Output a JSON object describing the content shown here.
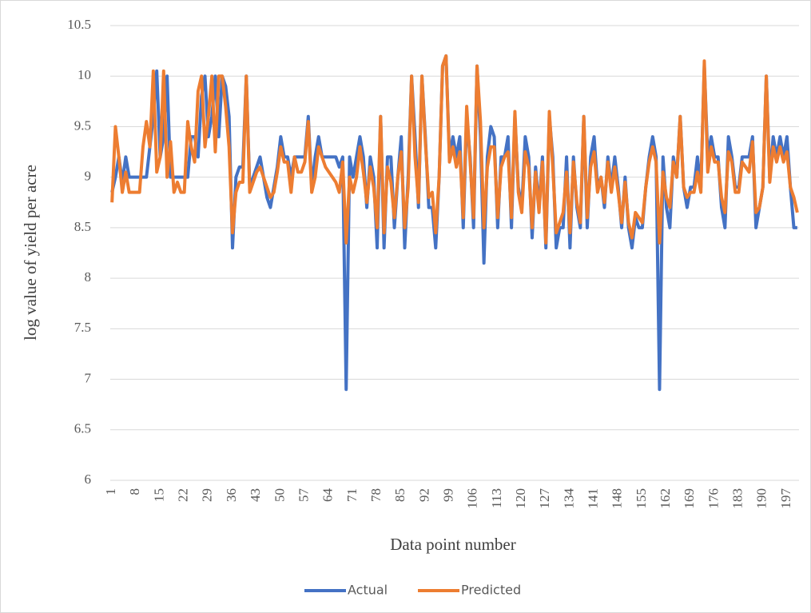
{
  "chart_data": {
    "type": "line",
    "x_label": "Data point number",
    "y_label": "log value of yield per acre",
    "x": [
      1,
      2,
      3,
      4,
      5,
      6,
      7,
      8,
      9,
      10,
      11,
      12,
      13,
      14,
      15,
      16,
      17,
      18,
      19,
      20,
      21,
      22,
      23,
      24,
      25,
      26,
      27,
      28,
      29,
      30,
      31,
      32,
      33,
      34,
      35,
      36,
      37,
      38,
      39,
      40,
      41,
      42,
      43,
      44,
      45,
      46,
      47,
      48,
      49,
      50,
      51,
      52,
      53,
      54,
      55,
      56,
      57,
      58,
      59,
      60,
      61,
      62,
      63,
      64,
      65,
      66,
      67,
      68,
      69,
      70,
      71,
      72,
      73,
      74,
      75,
      76,
      77,
      78,
      79,
      80,
      81,
      82,
      83,
      84,
      85,
      86,
      87,
      88,
      89,
      90,
      91,
      92,
      93,
      94,
      95,
      96,
      97,
      98,
      99,
      100,
      101,
      102,
      103,
      104,
      105,
      106,
      107,
      108,
      109,
      110,
      111,
      112,
      113,
      114,
      115,
      116,
      117,
      118,
      119,
      120,
      121,
      122,
      123,
      124,
      125,
      126,
      127,
      128,
      129,
      130,
      131,
      132,
      133,
      134,
      135,
      136,
      137,
      138,
      139,
      140,
      141,
      142,
      143,
      144,
      145,
      146,
      147,
      148,
      149,
      150,
      151,
      152,
      153,
      154,
      155,
      156,
      157,
      158,
      159,
      160,
      161,
      162,
      163,
      164,
      165,
      166,
      167,
      168,
      169,
      170,
      171,
      172,
      173,
      174,
      175,
      176,
      177,
      178,
      179,
      180,
      181,
      182,
      183,
      184,
      185,
      186,
      187,
      188,
      189,
      190,
      191,
      192,
      193,
      194,
      195,
      196,
      197,
      198,
      199,
      200
    ],
    "series": [
      {
        "name": "Actual",
        "color": "#4472c4",
        "values": [
          8.85,
          9.0,
          9.2,
          8.95,
          9.2,
          9.0,
          9.0,
          9.0,
          9.0,
          9.0,
          9.0,
          9.3,
          9.6,
          10.05,
          9.2,
          9.4,
          10.0,
          9.0,
          9.0,
          9.0,
          9.0,
          9.0,
          9.0,
          9.4,
          9.4,
          9.2,
          9.8,
          10.0,
          9.4,
          9.6,
          10.0,
          9.4,
          10.0,
          9.9,
          9.6,
          8.3,
          9.0,
          9.1,
          9.1,
          10.0,
          8.9,
          9.0,
          9.1,
          9.2,
          9.0,
          8.8,
          8.7,
          8.9,
          9.1,
          9.4,
          9.2,
          9.2,
          9.0,
          9.2,
          9.2,
          9.2,
          9.2,
          9.6,
          8.9,
          9.2,
          9.4,
          9.2,
          9.2,
          9.2,
          9.2,
          9.2,
          9.1,
          9.2,
          6.9,
          9.2,
          9.0,
          9.2,
          9.4,
          9.2,
          8.7,
          9.2,
          9.0,
          8.3,
          9.6,
          8.3,
          9.2,
          9.2,
          8.5,
          9.0,
          9.4,
          8.3,
          9.0,
          10.0,
          9.4,
          8.7,
          10.0,
          9.4,
          8.7,
          8.7,
          8.3,
          9.0,
          10.1,
          10.2,
          9.2,
          9.4,
          9.2,
          9.4,
          8.5,
          9.6,
          9.2,
          8.5,
          10.1,
          9.4,
          8.15,
          9.2,
          9.5,
          9.4,
          8.5,
          9.2,
          9.2,
          9.4,
          8.5,
          9.6,
          8.9,
          8.7,
          9.4,
          9.2,
          8.4,
          9.1,
          8.7,
          9.2,
          8.3,
          9.6,
          9.2,
          8.3,
          8.5,
          8.5,
          9.2,
          8.3,
          9.2,
          8.7,
          8.5,
          9.6,
          8.5,
          9.2,
          9.4,
          8.9,
          9.0,
          8.7,
          9.2,
          8.9,
          9.2,
          8.9,
          8.5,
          9.0,
          8.5,
          8.3,
          8.6,
          8.5,
          8.5,
          8.9,
          9.2,
          9.4,
          9.2,
          6.9,
          9.2,
          8.7,
          8.5,
          9.2,
          9.0,
          9.6,
          8.9,
          8.7,
          8.9,
          8.9,
          9.2,
          8.9,
          10.1,
          9.2,
          9.4,
          9.2,
          9.2,
          8.7,
          8.5,
          9.4,
          9.2,
          8.9,
          8.9,
          9.2,
          9.2,
          9.2,
          9.4,
          8.5,
          8.7,
          8.9,
          10.0,
          9.0,
          9.4,
          9.2,
          9.4,
          9.2,
          9.4,
          8.9,
          8.5,
          8.5
        ]
      },
      {
        "name": "Predicted",
        "color": "#ed7d31",
        "values": [
          8.75,
          9.5,
          9.2,
          8.85,
          9.05,
          8.85,
          8.85,
          8.85,
          8.85,
          9.3,
          9.55,
          9.3,
          10.05,
          9.05,
          9.2,
          10.05,
          9.0,
          9.35,
          8.85,
          8.95,
          8.85,
          8.85,
          9.55,
          9.3,
          9.15,
          9.85,
          10.0,
          9.3,
          9.6,
          10.0,
          9.25,
          10.0,
          10.0,
          9.7,
          9.3,
          8.45,
          8.85,
          8.95,
          8.95,
          10.0,
          8.85,
          8.95,
          9.05,
          9.1,
          9.0,
          8.9,
          8.8,
          8.85,
          9.05,
          9.3,
          9.15,
          9.15,
          8.85,
          9.2,
          9.05,
          9.05,
          9.15,
          9.55,
          8.85,
          9.0,
          9.3,
          9.2,
          9.1,
          9.05,
          9.0,
          8.95,
          8.85,
          9.15,
          8.35,
          9.0,
          8.85,
          9.0,
          9.3,
          9.05,
          8.75,
          9.1,
          8.9,
          8.5,
          9.6,
          8.45,
          9.1,
          8.95,
          8.6,
          9.0,
          9.25,
          8.5,
          8.9,
          10.0,
          9.2,
          8.75,
          10.0,
          9.35,
          8.8,
          8.85,
          8.45,
          9.0,
          10.1,
          10.2,
          9.15,
          9.3,
          9.1,
          9.25,
          8.6,
          9.7,
          9.15,
          8.6,
          10.1,
          9.55,
          8.5,
          9.1,
          9.3,
          9.3,
          8.6,
          9.1,
          9.2,
          9.25,
          8.6,
          9.65,
          8.85,
          8.65,
          9.25,
          9.1,
          8.5,
          9.05,
          8.65,
          9.15,
          8.35,
          9.65,
          9.1,
          8.45,
          8.55,
          8.65,
          9.05,
          8.45,
          9.15,
          8.75,
          8.55,
          9.6,
          8.6,
          9.1,
          9.25,
          8.85,
          9.0,
          8.75,
          9.15,
          8.85,
          9.1,
          8.85,
          8.55,
          8.95,
          8.55,
          8.4,
          8.65,
          8.6,
          8.55,
          8.9,
          9.15,
          9.3,
          9.15,
          8.35,
          9.05,
          8.8,
          8.7,
          9.15,
          9.0,
          9.6,
          8.9,
          8.8,
          8.85,
          8.85,
          9.05,
          8.85,
          10.15,
          9.05,
          9.3,
          9.15,
          9.15,
          8.8,
          8.65,
          9.25,
          9.15,
          8.85,
          8.85,
          9.15,
          9.1,
          9.05,
          9.35,
          8.65,
          8.7,
          8.9,
          10.0,
          8.95,
          9.3,
          9.15,
          9.3,
          9.15,
          9.25,
          8.9,
          8.8,
          8.65
        ]
      }
    ],
    "xlim": [
      0.5,
      200.5
    ],
    "xticks": [
      1,
      8,
      15,
      22,
      29,
      36,
      43,
      50,
      57,
      64,
      71,
      78,
      85,
      92,
      99,
      106,
      113,
      120,
      127,
      134,
      141,
      148,
      155,
      162,
      169,
      176,
      183,
      190,
      197
    ],
    "ylim": [
      6,
      10.5
    ],
    "yticks": [
      6,
      6.5,
      7,
      7.5,
      8,
      8.5,
      9,
      9.5,
      10,
      10.5
    ],
    "grid": true,
    "legend": "bottom"
  }
}
